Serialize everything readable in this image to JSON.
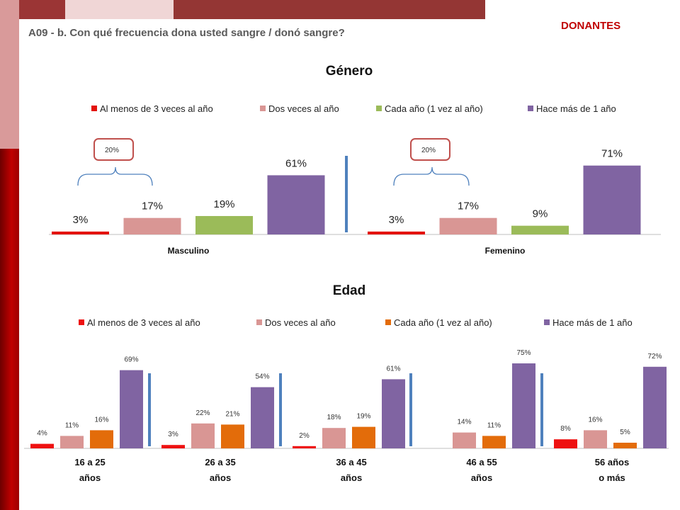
{
  "header": {
    "question": "A09 - b. Con qué frecuencia dona usted sangre / donó sangre?",
    "tag": "DONANTES"
  },
  "colors": {
    "accent": "#c00000",
    "bar_top_light": "#f0d6d6",
    "bar_top_dark": "#9b3535",
    "sidebar_light": "#d99a9a",
    "sidebar_dark": "#9c0000"
  },
  "chart_data": [
    {
      "type": "bar",
      "title": "Género",
      "categories": [
        "Masculino",
        "Femenino"
      ],
      "legend_position": "top",
      "series": [
        {
          "name": "Al menos de 3 veces al año",
          "color": "#e3120b",
          "values": [
            3,
            3
          ],
          "labels": [
            "3%",
            "3%"
          ]
        },
        {
          "name": "Dos veces al año",
          "color": "#d99694",
          "values": [
            17,
            17
          ],
          "labels": [
            "17%",
            "17%"
          ]
        },
        {
          "name": "Cada año (1 vez al año)",
          "color": "#9bbb59",
          "values": [
            19,
            9
          ],
          "labels": [
            "19%",
            "9%"
          ]
        },
        {
          "name": "Hace más de 1 año",
          "color": "#8064a2",
          "values": [
            61,
            71
          ],
          "labels": [
            "61%",
            "71%"
          ]
        }
      ],
      "annotations": [
        {
          "text": "20%",
          "group": 0
        },
        {
          "text": "20%",
          "group": 1
        }
      ]
    },
    {
      "type": "bar",
      "title": "Edad",
      "categories": [
        [
          "16 a 25",
          "años"
        ],
        [
          "26 a 35",
          "años"
        ],
        [
          "36 a 45",
          "años"
        ],
        [
          "46 a 55",
          "años"
        ],
        [
          "56 años",
          "o más"
        ]
      ],
      "legend_position": "top",
      "series": [
        {
          "name": "Al menos de 3 veces al año",
          "color": "#ee1111",
          "values": [
            4,
            3,
            2,
            0,
            8
          ],
          "labels": [
            "4%",
            "3%",
            "2%",
            "",
            "8%"
          ]
        },
        {
          "name": "Dos veces al año",
          "color": "#d99694",
          "values": [
            11,
            22,
            18,
            14,
            16
          ],
          "labels": [
            "11%",
            "22%",
            "18%",
            "14%",
            "16%"
          ]
        },
        {
          "name": "Cada año (1 vez al año)",
          "color": "#e36c0a",
          "values": [
            16,
            21,
            19,
            11,
            5
          ],
          "labels": [
            "16%",
            "21%",
            "19%",
            "11%",
            "5%"
          ]
        },
        {
          "name": "Hace más de 1 año",
          "color": "#8064a2",
          "values": [
            69,
            54,
            61,
            75,
            72
          ],
          "labels": [
            "69%",
            "54%",
            "61%",
            "75%",
            "72%"
          ]
        }
      ]
    }
  ]
}
